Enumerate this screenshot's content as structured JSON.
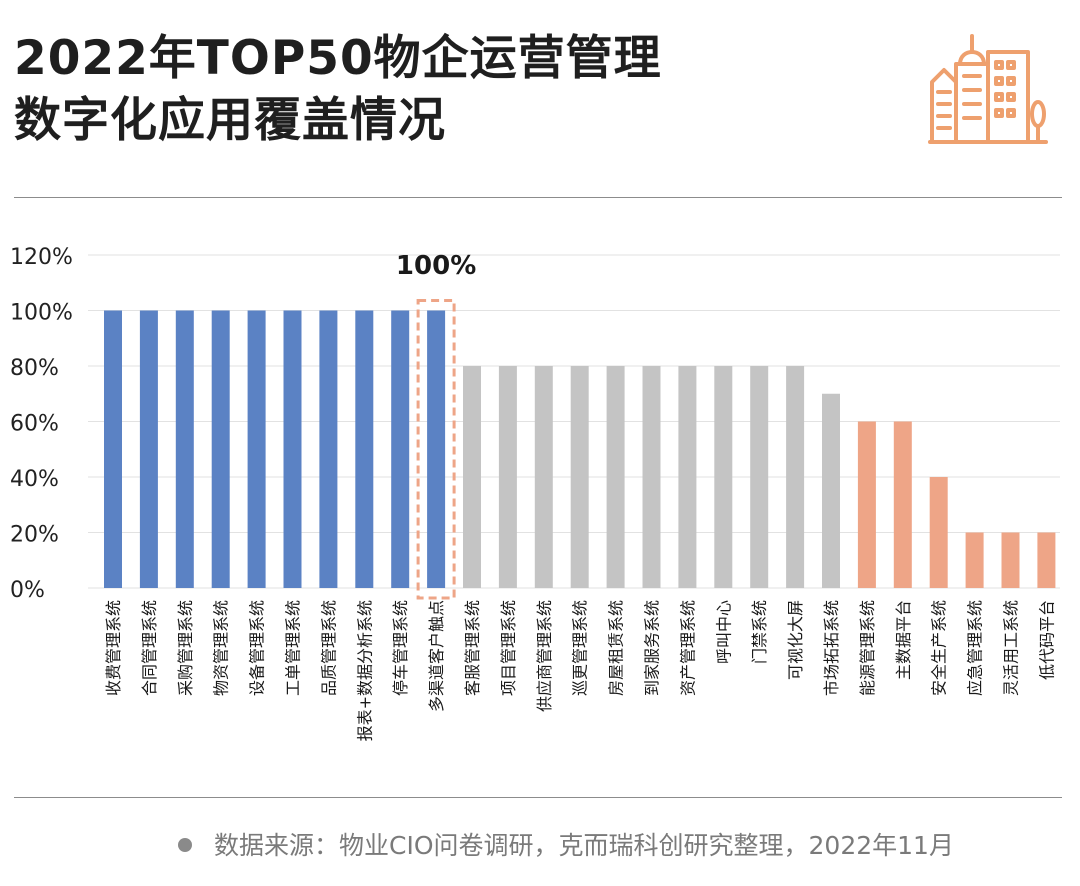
{
  "header": {
    "title_line1": "2022年TOP50物企运营管理",
    "title_line2": "数字化应用覆盖情况"
  },
  "chart_data": {
    "type": "bar",
    "title": "2022年TOP50物企运营管理数字化应用覆盖情况",
    "xlabel": "",
    "ylabel": "",
    "ylim": [
      0,
      120
    ],
    "yticks": [
      0,
      20,
      40,
      60,
      80,
      100,
      120
    ],
    "ytick_labels": [
      "0%",
      "20%",
      "40%",
      "60%",
      "80%",
      "100%",
      "120%"
    ],
    "grid": true,
    "categories": [
      "收费管理系统",
      "合同管理系统",
      "采购管理系统",
      "物资管理系统",
      "设备管理系统",
      "工单管理系统",
      "品质管理系统",
      "报表+数据分析系统",
      "停车管理系统",
      "多渠道客户触点",
      "客服管理系统",
      "项目管理系统",
      "供应商管理系统",
      "巡更管理系统",
      "房屋租赁系统",
      "到家服务系统",
      "资产管理系统",
      "呼叫中心",
      "门禁系统",
      "可视化大屏",
      "市场拓拓系统",
      "能源管理系统",
      "主数据平台",
      "安全生产系统",
      "应急管理系统",
      "灵活用工系统",
      "低代码平台"
    ],
    "values": [
      100,
      100,
      100,
      100,
      100,
      100,
      100,
      100,
      100,
      100,
      80,
      80,
      80,
      80,
      80,
      80,
      80,
      80,
      80,
      80,
      70,
      60,
      60,
      40,
      20,
      20,
      20
    ],
    "groups": [
      "high",
      "high",
      "high",
      "high",
      "high",
      "high",
      "high",
      "high",
      "high",
      "high",
      "mid",
      "mid",
      "mid",
      "mid",
      "mid",
      "mid",
      "mid",
      "mid",
      "mid",
      "mid",
      "mid",
      "low",
      "low",
      "low",
      "low",
      "low",
      "low"
    ],
    "colors": {
      "high": "#5b82c4",
      "mid": "#c4c4c4",
      "low": "#eea587",
      "highlight": "#eea587",
      "grid": "#e2e2e2"
    },
    "highlight_index": 9,
    "annotation": "100%"
  },
  "footer": {
    "source": "数据来源：物业CIO问卷调研，克而瑞科创研究整理，2022年11月"
  },
  "icons": {
    "logo": "city-buildings-icon",
    "bullet": "dot-icon"
  }
}
